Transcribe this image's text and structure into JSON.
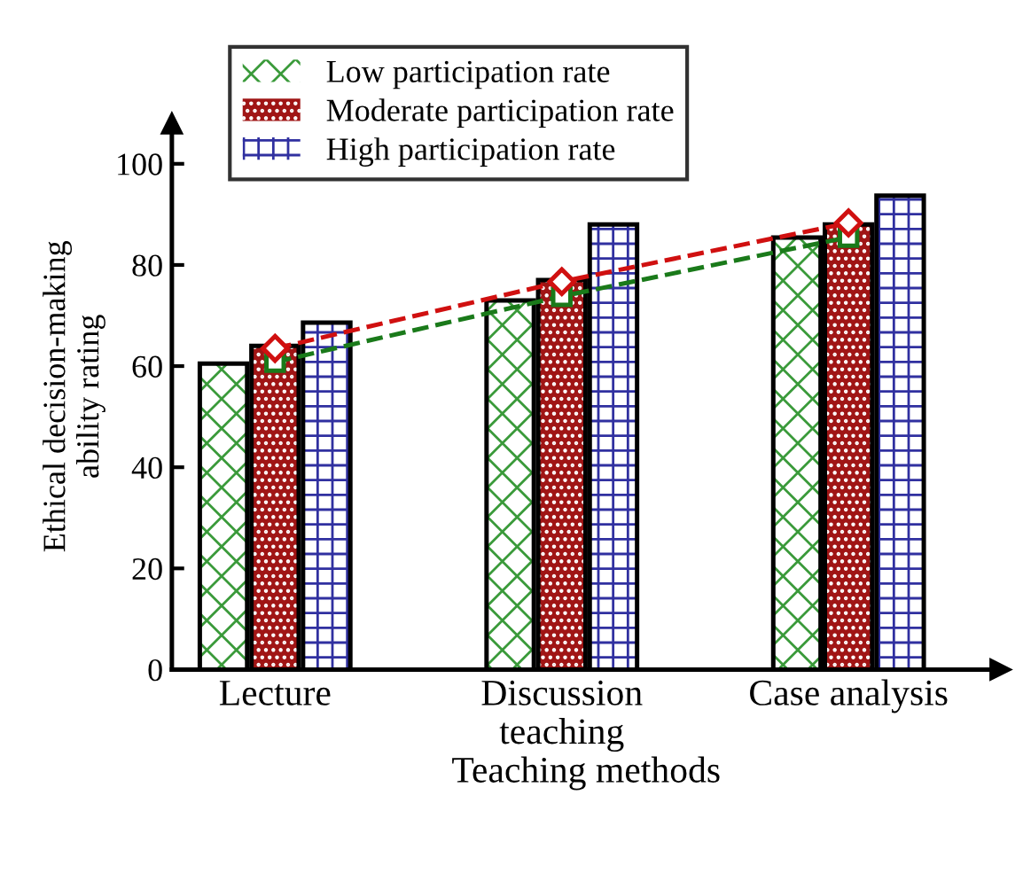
{
  "chart_data": {
    "type": "bar",
    "xlabel": "Teaching methods",
    "ylabel": "Ethical decision-making\nability rating",
    "categories": [
      "Lecture",
      "Discussion\nteaching",
      "Case analysis"
    ],
    "series": [
      {
        "name": "Low participation rate",
        "color": "#3a9a3a",
        "values": [
          60.5,
          73,
          85.4
        ]
      },
      {
        "name": "Moderate participation rate",
        "color": "#a01515",
        "values": [
          64,
          77,
          88
        ]
      },
      {
        "name": "High participation rate",
        "color": "#3030a0",
        "values": [
          68.6,
          88,
          93.7
        ]
      },
      {
        "type": "line",
        "color": "#1a7a1a",
        "values": [
          60.8,
          73.8,
          85.5
        ],
        "marker": "square",
        "line_style": "dashed"
      },
      {
        "type": "line",
        "color": "#d01010",
        "values": [
          63.5,
          76.7,
          88.3
        ],
        "marker": "diamond",
        "line_style": "dashed"
      }
    ],
    "ylim": [
      0,
      108
    ],
    "yticks": [
      0,
      20,
      40,
      60,
      80,
      100
    ],
    "grid": false,
    "legend": "top left"
  }
}
